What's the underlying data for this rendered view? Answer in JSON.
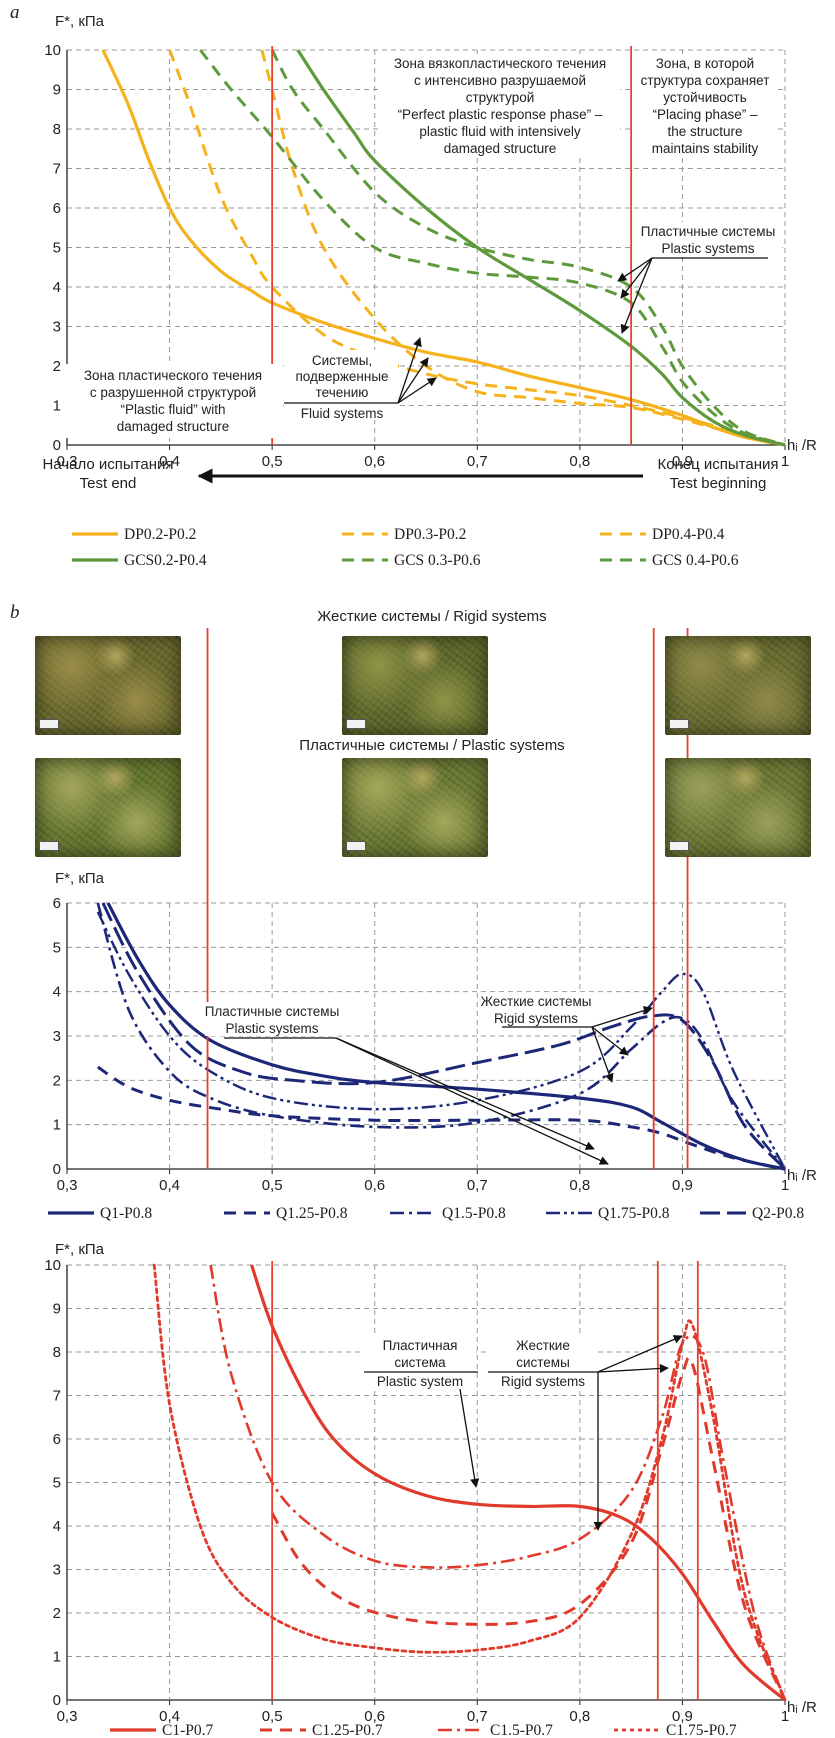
{
  "colors": {
    "dp": "#F5B21D",
    "gcs": "#5E9A3C",
    "q": "#1D2778",
    "c": "#E03A2D",
    "marker": "#E8402F",
    "grid": "#999999"
  },
  "figure": {
    "panel_a": "a",
    "panel_b": "b",
    "rigid_title": "Жесткие системы / Rigid systems",
    "plastic_title": "Пластичные системы / Plastic systems",
    "direction_left_ru": "Начало испытания",
    "direction_left_en": "Test end",
    "direction_right_ru": "Конец испытания",
    "direction_right_en": "Test beginning"
  },
  "photos": [
    {
      "name": "photo-rigid-1",
      "base": "#6a6a2e",
      "hi": "#9a8d48"
    },
    {
      "name": "photo-rigid-2",
      "base": "#5f6a2c",
      "hi": "#8f9446"
    },
    {
      "name": "photo-rigid-3",
      "base": "#6a6e30",
      "hi": "#8f8a4a"
    },
    {
      "name": "photo-plastic-1",
      "base": "#64772f",
      "hi": "#a3a65c"
    },
    {
      "name": "photo-plastic-2",
      "base": "#6b7a34",
      "hi": "#a4a85a"
    },
    {
      "name": "photo-plastic-3",
      "base": "#6c7a35",
      "hi": "#9aa05a"
    }
  ],
  "chart_data": [
    {
      "id": "a",
      "type": "line",
      "ylabel": "F*, кПа",
      "xlabel": "hᵢ /R",
      "xlim": [
        0.3,
        1.0
      ],
      "ylim": [
        0,
        10
      ],
      "xticks": [
        "0,3",
        "0,4",
        "0,5",
        "0,6",
        "0,7",
        "0,8",
        "0,9",
        "1"
      ],
      "yticks": [
        "0",
        "1",
        "2",
        "3",
        "4",
        "5",
        "6",
        "7",
        "8",
        "9",
        "10"
      ],
      "grid": true,
      "markers_x": [
        0.5,
        0.85
      ],
      "annotations": {
        "zone_left": [
          "Зона пластического течения",
          "с разрушенной структурой",
          "“Plastic fluid” with",
          "damaged structure"
        ],
        "zone_mid": [
          "Зона вязкопластического течения",
          "с интенсивно разрушаемой",
          "структурой",
          "“Perfect plastic response phase” –",
          "plastic fluid with intensively",
          "damaged structure"
        ],
        "zone_right": [
          "Зона, в которой",
          "структура сохраняет",
          "устойчивость",
          "“Placing phase” –",
          "the structure",
          "maintains stability"
        ],
        "fluid": [
          "Системы,",
          "подверженные",
          "течению",
          "Fluid systems"
        ],
        "plastic": [
          "Пластичные системы",
          "Plastic systems"
        ]
      },
      "legend": [
        "DP0.2-P0.2",
        "DP0.3-P0.2",
        "DP0.4-P0.4",
        "GCS0.2-P0.4",
        "GCS 0.3-P0.6",
        "GCS 0.4-P0.6"
      ],
      "series": [
        {
          "name": "DP0.2-P0.2",
          "style": "solid",
          "color": "#F5B21D",
          "x": [
            0.335,
            0.36,
            0.38,
            0.4,
            0.42,
            0.45,
            0.48,
            0.5,
            0.55,
            0.6,
            0.65,
            0.7,
            0.75,
            0.8,
            0.85,
            0.9,
            0.93,
            0.96,
            1.0
          ],
          "y": [
            10,
            8.6,
            7.2,
            6.0,
            5.2,
            4.4,
            3.9,
            3.6,
            3.1,
            2.7,
            2.35,
            2.1,
            1.75,
            1.45,
            1.15,
            0.75,
            0.45,
            0.2,
            0
          ]
        },
        {
          "name": "DP0.3-P0.2",
          "style": "dashed",
          "color": "#F5B21D",
          "x": [
            0.4,
            0.42,
            0.45,
            0.48,
            0.5,
            0.55,
            0.6,
            0.65,
            0.7,
            0.75,
            0.8,
            0.85,
            0.9,
            0.95,
            1.0
          ],
          "y": [
            10,
            8.6,
            6.3,
            4.8,
            4.0,
            2.8,
            2.2,
            1.8,
            1.55,
            1.4,
            1.25,
            1.0,
            0.7,
            0.35,
            0
          ]
        },
        {
          "name": "DP0.4-P0.4",
          "style": "dashed",
          "color": "#F5B21D",
          "x": [
            0.49,
            0.5,
            0.52,
            0.55,
            0.6,
            0.65,
            0.7,
            0.75,
            0.8,
            0.85,
            0.9,
            0.95,
            1.0
          ],
          "y": [
            10,
            9.0,
            7.0,
            5.0,
            3.2,
            2.0,
            1.35,
            1.2,
            1.05,
            0.95,
            0.65,
            0.3,
            0
          ]
        },
        {
          "name": "GCS0.2-P0.4",
          "style": "solid",
          "color": "#5E9A3C",
          "x": [
            0.525,
            0.55,
            0.58,
            0.6,
            0.65,
            0.7,
            0.75,
            0.8,
            0.85,
            0.88,
            0.9,
            0.93,
            0.96,
            1.0
          ],
          "y": [
            10,
            9.0,
            7.9,
            7.2,
            6.0,
            5.0,
            4.2,
            3.4,
            2.5,
            1.8,
            1.2,
            0.6,
            0.25,
            0
          ]
        },
        {
          "name": "GCS 0.3-P0.6",
          "style": "dashed",
          "color": "#5E9A3C",
          "x": [
            0.43,
            0.46,
            0.5,
            0.55,
            0.6,
            0.65,
            0.7,
            0.75,
            0.8,
            0.85,
            0.88,
            0.9,
            0.93,
            0.96,
            1.0
          ],
          "y": [
            10,
            9.0,
            7.8,
            6.2,
            5.0,
            4.6,
            4.35,
            4.25,
            4.1,
            3.6,
            2.5,
            1.6,
            0.8,
            0.3,
            0
          ]
        },
        {
          "name": "GCS 0.4-P0.6",
          "style": "dashed",
          "color": "#5E9A3C",
          "x": [
            0.5,
            0.52,
            0.55,
            0.6,
            0.65,
            0.7,
            0.75,
            0.8,
            0.85,
            0.88,
            0.9,
            0.93,
            0.96,
            1.0
          ],
          "y": [
            10,
            9.0,
            8.0,
            6.4,
            5.5,
            5.0,
            4.7,
            4.5,
            4.0,
            3.0,
            2.0,
            1.0,
            0.35,
            0
          ]
        }
      ]
    },
    {
      "id": "b1",
      "type": "line",
      "ylabel": "F*, кПа",
      "xlabel": "hᵢ /R",
      "xlim": [
        0.3,
        1.0
      ],
      "ylim": [
        0,
        6
      ],
      "xticks": [
        "0,3",
        "0,4",
        "0,5",
        "0,6",
        "0,7",
        "0,8",
        "0,9",
        "1"
      ],
      "yticks": [
        "0",
        "1",
        "2",
        "3",
        "4",
        "5",
        "6"
      ],
      "grid": true,
      "markers_x": [
        0.437,
        0.872,
        0.905
      ],
      "annotations": {
        "plastic": [
          "Пластичные системы",
          "Plastic systems"
        ],
        "rigid": [
          "Жесткие системы",
          "Rigid systems"
        ]
      },
      "legend": [
        "Q1-P0.8",
        "Q1.25-P0.8",
        "Q1.5-P0.8",
        "Q1.75-P0.8",
        "Q2-P0.8"
      ],
      "series": [
        {
          "name": "Q1-P0.8",
          "style": "solid",
          "color": "#1D2778",
          "x": [
            0.34,
            0.37,
            0.4,
            0.44,
            0.5,
            0.55,
            0.6,
            0.7,
            0.8,
            0.85,
            0.88,
            0.92,
            0.96,
            1.0
          ],
          "y": [
            6,
            4.7,
            3.7,
            2.9,
            2.35,
            2.1,
            1.95,
            1.8,
            1.6,
            1.4,
            1.05,
            0.55,
            0.2,
            0
          ]
        },
        {
          "name": "Q1.25-P0.8",
          "style": "dashed",
          "color": "#1D2778",
          "x": [
            0.33,
            0.36,
            0.4,
            0.45,
            0.5,
            0.6,
            0.7,
            0.8,
            0.85,
            0.88,
            0.91,
            0.95,
            1.0
          ],
          "y": [
            2.3,
            1.85,
            1.55,
            1.35,
            1.2,
            1.1,
            1.1,
            1.1,
            0.95,
            0.8,
            0.55,
            0.25,
            0
          ]
        },
        {
          "name": "Q1.5-P0.8",
          "style": "dashdot",
          "color": "#1D2778",
          "x": [
            0.33,
            0.36,
            0.4,
            0.44,
            0.5,
            0.6,
            0.7,
            0.8,
            0.85,
            0.88,
            0.9,
            0.92,
            0.95,
            1.0
          ],
          "y": [
            6,
            3.6,
            2.2,
            1.6,
            1.2,
            0.95,
            1.05,
            1.7,
            2.7,
            3.3,
            3.4,
            2.9,
            1.5,
            0
          ]
        },
        {
          "name": "Q1.75-P0.8",
          "style": "dashdotdot",
          "color": "#1D2778",
          "x": [
            0.33,
            0.36,
            0.4,
            0.44,
            0.5,
            0.6,
            0.7,
            0.8,
            0.85,
            0.88,
            0.9,
            0.92,
            0.95,
            1.0
          ],
          "y": [
            5.8,
            4.4,
            3.0,
            2.2,
            1.6,
            1.35,
            1.55,
            2.2,
            3.2,
            4.0,
            4.4,
            4.0,
            2.2,
            0
          ]
        },
        {
          "name": "Q2-P0.8",
          "style": "longdash",
          "color": "#1D2778",
          "x": [
            0.335,
            0.37,
            0.42,
            0.47,
            0.52,
            0.6,
            0.7,
            0.78,
            0.83,
            0.87,
            0.9,
            0.93,
            0.96,
            1.0
          ],
          "y": [
            6,
            4.4,
            2.8,
            2.2,
            2.0,
            1.95,
            2.4,
            2.8,
            3.2,
            3.45,
            3.35,
            2.4,
            1.0,
            0
          ]
        }
      ]
    },
    {
      "id": "b2",
      "type": "line",
      "ylabel": "F*, кПа",
      "xlabel": "hᵢ /R",
      "xlim": [
        0.3,
        1.0
      ],
      "ylim": [
        0,
        10
      ],
      "xticks": [
        "0,3",
        "0,4",
        "0,5",
        "0,6",
        "0,7",
        "0,8",
        "0,9",
        "1"
      ],
      "yticks": [
        "0",
        "1",
        "2",
        "3",
        "4",
        "5",
        "6",
        "7",
        "8",
        "9",
        "10"
      ],
      "grid": true,
      "markers_x": [
        0.5,
        0.876,
        0.915
      ],
      "annotations": {
        "plastic": [
          "Пластичная",
          "система",
          "Plastic system"
        ],
        "rigid": [
          "Жесткие",
          "системы",
          "Rigid systems"
        ]
      },
      "legend": [
        "C1-P0.7",
        "C1.25-P0.7",
        "C1.5-P0.7",
        "C1.75-P0.7"
      ],
      "series": [
        {
          "name": "C1-P0.7",
          "style": "solid",
          "color": "#E03A2D",
          "x": [
            0.48,
            0.5,
            0.53,
            0.56,
            0.6,
            0.65,
            0.7,
            0.75,
            0.8,
            0.84,
            0.87,
            0.9,
            0.93,
            0.96,
            1.0
          ],
          "y": [
            10,
            8.6,
            7.1,
            6.0,
            5.2,
            4.7,
            4.5,
            4.45,
            4.45,
            4.2,
            3.7,
            2.9,
            1.8,
            0.8,
            0
          ]
        },
        {
          "name": "C1.25-P0.7",
          "style": "dashed",
          "color": "#E03A2D",
          "x": [
            0.5,
            0.53,
            0.57,
            0.62,
            0.68,
            0.75,
            0.8,
            0.85,
            0.88,
            0.9,
            0.91,
            0.93,
            0.96,
            1.0
          ],
          "y": [
            4.3,
            3.1,
            2.3,
            1.9,
            1.75,
            1.8,
            2.2,
            3.6,
            5.8,
            7.5,
            7.7,
            5.5,
            2.2,
            0
          ]
        },
        {
          "name": "C1.5-P0.7",
          "style": "dashdot",
          "color": "#E03A2D",
          "x": [
            0.44,
            0.46,
            0.5,
            0.55,
            0.6,
            0.65,
            0.7,
            0.75,
            0.8,
            0.85,
            0.88,
            0.9,
            0.92,
            0.94,
            0.97,
            1.0
          ],
          "y": [
            10,
            7.5,
            5.0,
            3.8,
            3.2,
            3.05,
            3.1,
            3.3,
            3.7,
            4.8,
            6.5,
            8.2,
            8.0,
            5.5,
            2.0,
            0
          ]
        },
        {
          "name": "C1.75-P0.7",
          "style": "dotted",
          "color": "#E03A2D",
          "x": [
            0.385,
            0.4,
            0.43,
            0.46,
            0.5,
            0.55,
            0.6,
            0.65,
            0.7,
            0.75,
            0.8,
            0.85,
            0.88,
            0.9,
            0.91,
            0.93,
            0.96,
            1.0
          ],
          "y": [
            10,
            6.8,
            4.0,
            2.7,
            1.9,
            1.4,
            1.2,
            1.1,
            1.15,
            1.35,
            1.9,
            3.8,
            6.0,
            8.2,
            8.6,
            6.5,
            2.5,
            0
          ]
        }
      ]
    }
  ]
}
